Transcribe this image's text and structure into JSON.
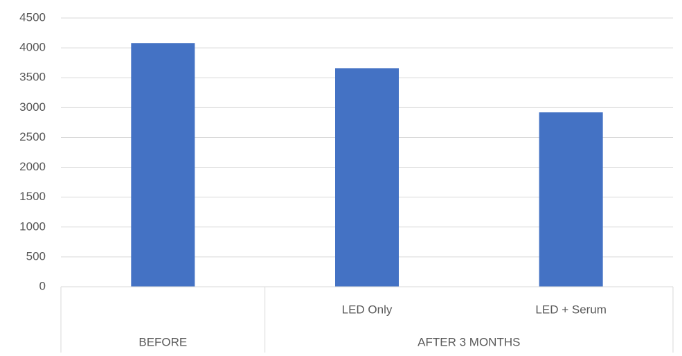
{
  "chart_data": {
    "type": "bar",
    "categories": [
      null,
      "LED Only",
      "LED + Serum"
    ],
    "groups": [
      {
        "label": "BEFORE",
        "count": 1
      },
      {
        "label": "AFTER 3 MONTHS",
        "count": 2
      }
    ],
    "values": [
      4080,
      3660,
      2920
    ],
    "color": "#4472c4",
    "ylim": [
      0,
      4500
    ],
    "yticks": [
      0,
      500,
      1000,
      1500,
      2000,
      2500,
      3000,
      3500,
      4000,
      4500
    ],
    "grid": true
  }
}
